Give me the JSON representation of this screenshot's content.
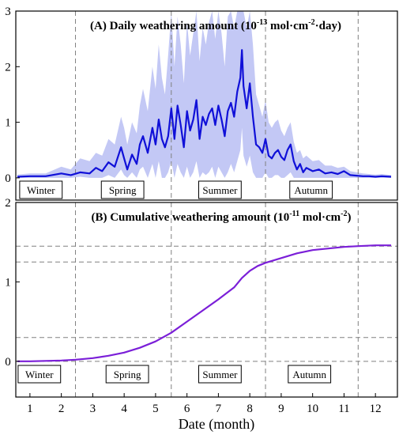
{
  "chart_data": [
    {
      "type": "line",
      "title_prefix": "(A) Daily weathering amount (10",
      "title_exp1": "-13",
      "title_mid": " mol·cm",
      "title_exp2": "-2",
      "title_suffix": "·day)",
      "xlabel": "",
      "ylabel": "",
      "xlim": [
        0.55,
        12.7
      ],
      "ylim": [
        -0.4,
        3.0
      ],
      "yticks": [
        "0",
        "1",
        "2",
        "3"
      ],
      "ytick_values": [
        0,
        1,
        2,
        3
      ],
      "season_dividers": [
        2.45,
        5.5,
        8.5,
        11.45
      ],
      "seasons": [
        "Winter",
        "Spring",
        "Summer",
        "Autumn"
      ],
      "season_centers": [
        1.35,
        3.95,
        7.05,
        9.95
      ],
      "line_color": "#1010d8",
      "band_color": "#c3c8f5",
      "series": [
        {
          "x": [
            0.6,
            1.0,
            1.5,
            2.0,
            2.3,
            2.6,
            2.9,
            3.1,
            3.3,
            3.5,
            3.7,
            3.9,
            4.0,
            4.1,
            4.25,
            4.4,
            4.5,
            4.6,
            4.75,
            4.9,
            5.0,
            5.1,
            5.2,
            5.3,
            5.4,
            5.5,
            5.6,
            5.7,
            5.8,
            5.9,
            6.0,
            6.1,
            6.2,
            6.3,
            6.4,
            6.5,
            6.6,
            6.7,
            6.8,
            6.9,
            7.0,
            7.1,
            7.2,
            7.3,
            7.4,
            7.5,
            7.6,
            7.7,
            7.75,
            7.8,
            7.9,
            8.0,
            8.1,
            8.2,
            8.3,
            8.4,
            8.5,
            8.6,
            8.7,
            8.8,
            8.9,
            9.0,
            9.1,
            9.2,
            9.3,
            9.4,
            9.5,
            9.6,
            9.7,
            9.8,
            10.0,
            10.2,
            10.4,
            10.6,
            10.8,
            11.0,
            11.2,
            11.4,
            11.6,
            11.8,
            12.0,
            12.2,
            12.5
          ],
          "values": [
            0.02,
            0.03,
            0.03,
            0.08,
            0.05,
            0.1,
            0.08,
            0.18,
            0.12,
            0.28,
            0.2,
            0.55,
            0.35,
            0.15,
            0.42,
            0.25,
            0.6,
            0.75,
            0.45,
            0.9,
            0.6,
            1.05,
            0.7,
            0.55,
            0.75,
            1.25,
            0.7,
            1.3,
            0.95,
            0.55,
            1.2,
            0.85,
            1.05,
            1.4,
            0.7,
            1.1,
            0.95,
            1.15,
            1.25,
            0.95,
            1.3,
            1.05,
            0.75,
            1.2,
            1.35,
            1.1,
            1.55,
            1.8,
            2.3,
            1.65,
            1.25,
            1.7,
            1.1,
            0.6,
            0.55,
            0.45,
            0.7,
            0.4,
            0.35,
            0.45,
            0.5,
            0.38,
            0.32,
            0.5,
            0.6,
            0.3,
            0.15,
            0.25,
            0.1,
            0.18,
            0.12,
            0.15,
            0.08,
            0.1,
            0.07,
            0.12,
            0.05,
            0.04,
            0.03,
            0.03,
            0.02,
            0.03,
            0.02
          ],
          "lower": [
            0.0,
            0.0,
            0.0,
            0.0,
            0.0,
            0.02,
            0.0,
            0.0,
            0.0,
            0.05,
            0.0,
            0.15,
            0.05,
            0.0,
            0.1,
            0.0,
            0.15,
            0.2,
            0.0,
            0.25,
            0.0,
            0.3,
            0.0,
            0.0,
            0.1,
            0.3,
            0.0,
            0.25,
            0.1,
            0.0,
            0.2,
            0.0,
            0.1,
            0.3,
            0.0,
            0.1,
            0.05,
            0.1,
            0.2,
            0.0,
            0.2,
            0.1,
            0.0,
            0.1,
            0.25,
            0.1,
            0.3,
            0.5,
            0.9,
            0.4,
            0.2,
            0.4,
            0.1,
            0.0,
            0.0,
            0.0,
            0.1,
            0.0,
            0.0,
            0.05,
            0.05,
            0.0,
            0.0,
            0.05,
            0.1,
            0.0,
            0.0,
            0.0,
            0.0,
            0.0,
            0.0,
            0.0,
            0.0,
            0.0,
            0.0,
            0.0,
            0.0,
            0.0,
            0.0,
            0.0,
            0.0,
            0.0,
            0.0
          ],
          "upper": [
            0.06,
            0.08,
            0.08,
            0.2,
            0.15,
            0.35,
            0.3,
            0.45,
            0.4,
            0.7,
            0.6,
            1.1,
            0.9,
            0.6,
            1.0,
            0.8,
            1.3,
            1.6,
            1.2,
            2.0,
            1.6,
            2.4,
            1.8,
            1.5,
            2.2,
            3.0,
            2.0,
            2.9,
            2.4,
            1.7,
            2.8,
            2.2,
            2.6,
            3.0,
            2.1,
            2.7,
            2.4,
            2.8,
            3.0,
            2.5,
            3.0,
            2.6,
            2.0,
            2.9,
            3.0,
            2.7,
            3.0,
            3.0,
            3.0,
            3.0,
            2.7,
            3.0,
            2.4,
            1.5,
            1.3,
            1.1,
            1.4,
            1.0,
            0.9,
            1.0,
            1.05,
            0.85,
            0.75,
            0.9,
            1.0,
            0.65,
            0.45,
            0.5,
            0.35,
            0.4,
            0.3,
            0.32,
            0.22,
            0.22,
            0.18,
            0.2,
            0.12,
            0.1,
            0.08,
            0.07,
            0.06,
            0.07,
            0.05
          ]
        }
      ]
    },
    {
      "type": "line",
      "title_prefix": "(B) Cumulative weathering amount (10",
      "title_exp1": "-11",
      "title_mid": " mol·cm",
      "title_exp2": "-2",
      "title_suffix": ")",
      "xlabel": "Date (month)",
      "ylabel": "",
      "xlim": [
        0.55,
        12.7
      ],
      "ylim": [
        -0.45,
        2.0
      ],
      "xticks": [
        "1",
        "2",
        "3",
        "4",
        "5",
        "6",
        "7",
        "8",
        "9",
        "10",
        "11",
        "12"
      ],
      "xtick_values": [
        1,
        2,
        3,
        4,
        5,
        6,
        7,
        8,
        9,
        10,
        11,
        12
      ],
      "yticks": [
        "0",
        "1",
        "2"
      ],
      "ytick_values": [
        0,
        1,
        2
      ],
      "season_dividers": [
        2.45,
        5.5,
        8.5,
        11.45
      ],
      "hlines": [
        0.0,
        0.3,
        1.25,
        1.45
      ],
      "seasons": [
        "Winter",
        "Spring",
        "Summer",
        "Autumn"
      ],
      "season_centers": [
        1.3,
        4.1,
        7.05,
        9.9
      ],
      "line_color": "#7b1fd8",
      "series": [
        {
          "x": [
            0.6,
            1.0,
            1.5,
            2.0,
            2.45,
            3.0,
            3.5,
            4.0,
            4.5,
            5.0,
            5.5,
            6.0,
            6.5,
            7.0,
            7.5,
            7.75,
            8.0,
            8.25,
            8.5,
            9.0,
            9.5,
            10.0,
            10.5,
            11.0,
            11.45,
            12.0,
            12.5
          ],
          "values": [
            0.0,
            0.0,
            0.005,
            0.01,
            0.02,
            0.04,
            0.07,
            0.11,
            0.17,
            0.25,
            0.36,
            0.5,
            0.64,
            0.78,
            0.93,
            1.05,
            1.14,
            1.2,
            1.24,
            1.3,
            1.36,
            1.4,
            1.42,
            1.44,
            1.45,
            1.46,
            1.46
          ]
        }
      ]
    }
  ]
}
